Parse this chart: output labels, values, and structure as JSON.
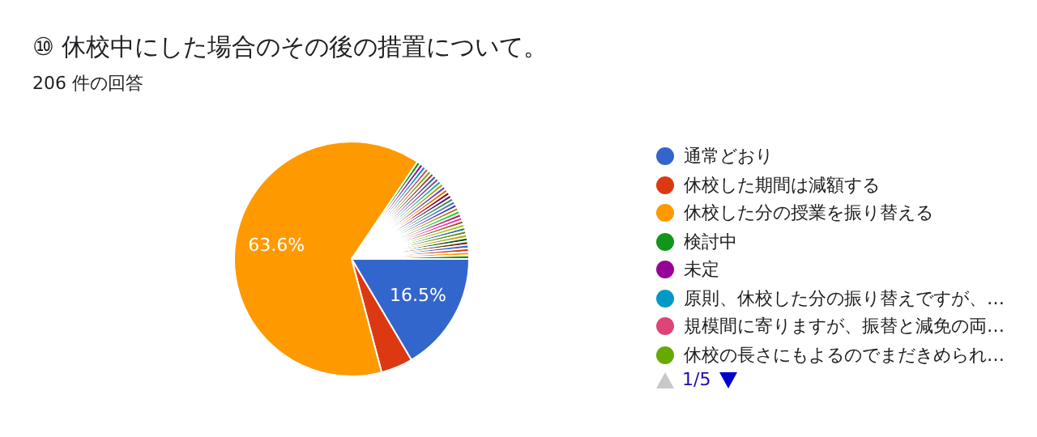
{
  "chart_data": {
    "type": "pie",
    "title": "⑩ 休校中にした場合のその後の措置について。",
    "subtitle": "206 件の回答",
    "categories": [
      "通常どおり",
      "休校した期間は減額する",
      "休校した分の授業を振り替える",
      "検討中",
      "未定",
      "原則、休校した分の振り替えですが、…",
      "規模間に寄りますが、振替と減免の両…",
      "休校の長さにもよるのでまだきめられ…",
      null,
      null,
      null,
      null,
      null,
      null,
      null,
      null,
      null,
      null,
      null,
      null,
      null,
      null,
      null,
      null,
      null,
      null,
      null,
      null,
      null,
      null,
      null,
      null,
      null,
      null,
      null
    ],
    "values": [
      16.5,
      4.38,
      63.6,
      0.485,
      0.485,
      0.485,
      0.485,
      0.485,
      0.485,
      0.485,
      0.485,
      0.485,
      0.485,
      0.485,
      0.485,
      0.485,
      0.485,
      0.485,
      0.485,
      0.485,
      0.485,
      0.485,
      0.485,
      0.485,
      0.485,
      0.485,
      0.485,
      0.485,
      0.485,
      0.485,
      0.485,
      0.485,
      0.485,
      0.485,
      0.485
    ],
    "colors": [
      "#3366cc",
      "#dc3912",
      "#ff9900",
      "#109618",
      "#990099",
      "#0099c6",
      "#dd4477",
      "#66aa00",
      "#b82e2e",
      "#316395",
      "#994499",
      "#22aa99",
      "#aaaa11",
      "#6633cc",
      "#e67300",
      "#8b0707",
      "#651067",
      "#329262",
      "#5574a6",
      "#3b3eac",
      "#b77322",
      "#16d620",
      "#b91383",
      "#f4359e",
      "#9c5935",
      "#a9c413",
      "#2a778d",
      "#668d1c",
      "#bea413",
      "#0c5922",
      "#743411",
      "#3366cc",
      "#dc3912",
      "#ff9900",
      "#109618"
    ],
    "value_labels": [
      "16.5%",
      null,
      "63.6%",
      null,
      null,
      null,
      null,
      null,
      null,
      null,
      null,
      null,
      null,
      null,
      null,
      null,
      null,
      null,
      null,
      null,
      null,
      null,
      null,
      null,
      null,
      null,
      null,
      null,
      null,
      null,
      null,
      null,
      null,
      null,
      null
    ],
    "legend": "right",
    "annotations": [
      "1/5"
    ]
  }
}
